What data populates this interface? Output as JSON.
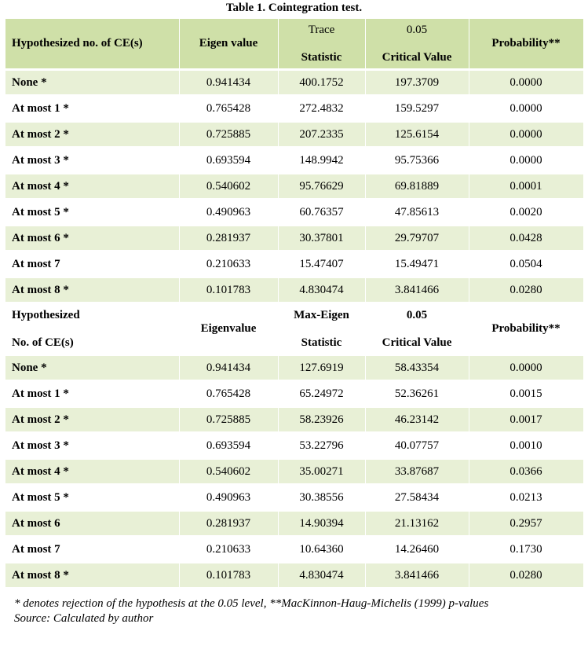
{
  "caption": "Table 1. Cointegration test.",
  "trace_header": {
    "col0": "Hypothesized no. of CE(s)",
    "col1": "Eigen value",
    "col2_top": "Trace",
    "col2_bottom": "Statistic",
    "col3_top": "0.05",
    "col3_bottom": "Critical Value",
    "col4": "Probability**"
  },
  "trace_rows": [
    {
      "label": "None *",
      "eigen": "0.941434",
      "stat": "400.1752",
      "crit": "197.3709",
      "prob": "0.0000"
    },
    {
      "label": "At most 1 *",
      "eigen": "0.765428",
      "stat": "272.4832",
      "crit": "159.5297",
      "prob": "0.0000"
    },
    {
      "label": "At most 2 *",
      "eigen": "0.725885",
      "stat": "207.2335",
      "crit": "125.6154",
      "prob": "0.0000"
    },
    {
      "label": "At most 3 *",
      "eigen": "0.693594",
      "stat": "148.9942",
      "crit": "95.75366",
      "prob": "0.0000"
    },
    {
      "label": "At most 4 *",
      "eigen": "0.540602",
      "stat": "95.76629",
      "crit": "69.81889",
      "prob": "0.0001"
    },
    {
      "label": "At most 5 *",
      "eigen": "0.490963",
      "stat": "60.76357",
      "crit": "47.85613",
      "prob": "0.0020"
    },
    {
      "label": "At most 6 *",
      "eigen": "0.281937",
      "stat": "30.37801",
      "crit": "29.79707",
      "prob": "0.0428"
    },
    {
      "label": "At most 7",
      "eigen": "0.210633",
      "stat": "15.47407",
      "crit": "15.49471",
      "prob": "0.0504"
    },
    {
      "label": "At most 8 *",
      "eigen": "0.101783",
      "stat": "4.830474",
      "crit": "3.841466",
      "prob": "0.0280"
    }
  ],
  "maxeigen_header": {
    "col0_top": "Hypothesized",
    "col0_bottom": "No. of CE(s)",
    "col1": "Eigenvalue",
    "col2_top": "Max-Eigen",
    "col2_bottom": "Statistic",
    "col3_top": "0.05",
    "col3_bottom": "Critical Value",
    "col4": "Probability**"
  },
  "maxeigen_rows": [
    {
      "label": "None *",
      "eigen": "0.941434",
      "stat": "127.6919",
      "crit": "58.43354",
      "prob": "0.0000"
    },
    {
      "label": "At most 1 *",
      "eigen": "0.765428",
      "stat": "65.24972",
      "crit": "52.36261",
      "prob": "0.0015"
    },
    {
      "label": "At most 2 *",
      "eigen": "0.725885",
      "stat": "58.23926",
      "crit": "46.23142",
      "prob": "0.0017"
    },
    {
      "label": "At most 3 *",
      "eigen": "0.693594",
      "stat": "53.22796",
      "crit": "40.07757",
      "prob": "0.0010"
    },
    {
      "label": "At most 4 *",
      "eigen": "0.540602",
      "stat": "35.00271",
      "crit": "33.87687",
      "prob": "0.0366"
    },
    {
      "label": "At most 5 *",
      "eigen": "0.490963",
      "stat": "30.38556",
      "crit": "27.58434",
      "prob": "0.0213"
    },
    {
      "label": "At most 6",
      "eigen": "0.281937",
      "stat": "14.90394",
      "crit": "21.13162",
      "prob": "0.2957"
    },
    {
      "label": "At most 7",
      "eigen": "0.210633",
      "stat": "10.64360",
      "crit": "14.26460",
      "prob": "0.1730"
    },
    {
      "label": "At most 8 *",
      "eigen": "0.101783",
      "stat": "4.830474",
      "crit": "3.841466",
      "prob": "0.0280"
    }
  ],
  "notes": {
    "line1": "* denotes rejection of the hypothesis at the 0.05 level, **MacKinnon-Haug-Michelis (1999) p-values",
    "line2": "Source: Calculated by author"
  },
  "colors": {
    "header_green": "#cfe0a8",
    "row_green": "#e8f0d6",
    "row_white": "#ffffff"
  }
}
